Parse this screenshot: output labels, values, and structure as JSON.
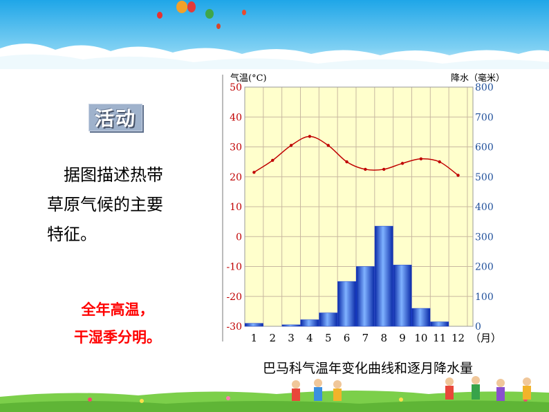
{
  "activity_label": "活动",
  "question_lines": [
    "　据图描述热带",
    "草原气候的主要",
    "特征。"
  ],
  "answer_lines": [
    "全年高温，",
    "干湿季分明。"
  ],
  "caption": "巴马科气温年变化曲线和逐月降水量",
  "chart_data": {
    "type": "bar+line",
    "title": "巴马科气温年变化曲线和逐月降水量",
    "left_axis_label": "气温(°C)",
    "right_axis_label": "降水（毫米）",
    "x_unit_label": "（月）",
    "months": [
      "1",
      "2",
      "3",
      "4",
      "5",
      "6",
      "7",
      "8",
      "9",
      "10",
      "11",
      "12"
    ],
    "temperature_c": [
      21.5,
      25.5,
      30.5,
      33.5,
      30.5,
      25,
      22.5,
      22.5,
      24.5,
      26,
      25,
      20.5
    ],
    "precipitation_mm": [
      10,
      0,
      5,
      22,
      45,
      150,
      200,
      335,
      205,
      60,
      15,
      0
    ],
    "temp_ylim": [
      -30,
      50
    ],
    "temp_ticks": [
      "50",
      "40",
      "30",
      "20",
      "10",
      "0",
      "-10",
      "-20",
      "-30"
    ],
    "precip_ylim": [
      0,
      800
    ],
    "precip_ticks": [
      "800",
      "700",
      "600",
      "500",
      "400",
      "300",
      "200",
      "100",
      "0"
    ],
    "colors": {
      "plot_bg": "#ffffcc",
      "grid": "#c8b8a0",
      "temp_line": "#c00000",
      "bars": "#1a3fd0",
      "temp_axis": "#c00000",
      "precip_axis": "#1f4f9a"
    }
  }
}
